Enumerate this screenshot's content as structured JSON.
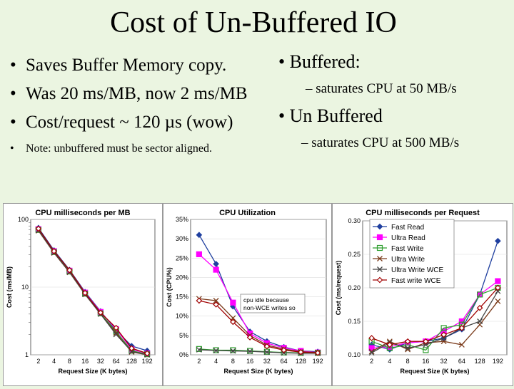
{
  "slide": {
    "title": "Cost of Un-Buffered IO",
    "left_bullets": [
      "Saves Buffer Memory copy.",
      "Was 20 ms/MB, now 2 ms/MB",
      "Cost/request ~ 120 µs (wow)",
      "Note: unbuffered must be sector aligned."
    ],
    "right_bullets": [
      {
        "text": "Buffered:",
        "sub": "saturates CPU at 50 MB/s"
      },
      {
        "text": "Un Buffered",
        "sub": "saturates CPU at 500 MB/s"
      }
    ]
  },
  "chart_data": [
    {
      "type": "line",
      "title": "CPU milliseconds per MB",
      "xlabel": "Request Size (K bytes)",
      "ylabel": "Cost (ms/MB)",
      "y_scale": "log",
      "ylim": [
        1,
        100
      ],
      "y_ticks": [
        "1",
        "10",
        "100"
      ],
      "categories": [
        "2",
        "4",
        "8",
        "16",
        "32",
        "64",
        "128",
        "192"
      ],
      "series": [
        {
          "color": "#1f3f9f",
          "marker": "diamond",
          "values": [
            75,
            35,
            18,
            8.5,
            4.4,
            2.3,
            1.35,
            1.15
          ]
        },
        {
          "color": "#ff00ff",
          "marker": "square",
          "values": [
            72,
            34,
            17.5,
            8.3,
            4.3,
            2.4,
            1.2,
            1.05
          ]
        },
        {
          "color": "#2e9e2e",
          "marker": "square-open",
          "values": [
            70,
            33,
            17,
            8,
            4.1,
            2.2,
            1.15,
            1.02
          ]
        },
        {
          "color": "#7a3a1a",
          "marker": "x",
          "values": [
            68,
            32,
            16.5,
            7.8,
            4.0,
            2.1,
            1.1,
            1.0
          ]
        },
        {
          "color": "#444444",
          "marker": "x",
          "values": [
            69,
            32.5,
            16.8,
            7.9,
            4.0,
            2.0,
            1.12,
            1.01
          ]
        },
        {
          "color": "#a00000",
          "marker": "diamond-open",
          "values": [
            73,
            34,
            17.8,
            8.2,
            4.2,
            2.5,
            1.25,
            1.05
          ]
        }
      ]
    },
    {
      "type": "line",
      "title": "CPU Utilization",
      "xlabel": "Request Size (K bytes)",
      "ylabel": "Cost (CPU%)",
      "ylim": [
        0,
        35
      ],
      "y_ticks": [
        "0%",
        "5%",
        "10%",
        "15%",
        "20%",
        "25%",
        "30%",
        "35%"
      ],
      "categories": [
        "2",
        "4",
        "8",
        "16",
        "32",
        "64",
        "128",
        "192"
      ],
      "annotation": "cpu idle because non-WCE writes so",
      "series": [
        {
          "color": "#1f3f9f",
          "marker": "diamond",
          "values": [
            31,
            23.5,
            12.5,
            6,
            3.5,
            2,
            1,
            0.8
          ]
        },
        {
          "color": "#ff00ff",
          "marker": "square",
          "values": [
            26,
            22,
            13.5,
            5.5,
            3,
            1.8,
            1,
            0.6
          ]
        },
        {
          "color": "#2e9e2e",
          "marker": "square-open",
          "values": [
            1.5,
            1.2,
            1.2,
            1,
            0.8,
            0.6,
            0.5,
            0.5
          ]
        },
        {
          "color": "#7a3a1a",
          "marker": "x",
          "values": [
            14.5,
            14,
            9.5,
            5,
            2.5,
            1.5,
            0.8,
            0.6
          ]
        },
        {
          "color": "#444444",
          "marker": "x",
          "values": [
            1.3,
            1.1,
            1,
            0.9,
            0.7,
            0.5,
            0.4,
            0.4
          ]
        },
        {
          "color": "#a00000",
          "marker": "diamond-open",
          "values": [
            14,
            13,
            8.5,
            4.5,
            2.2,
            1.2,
            0.7,
            0.5
          ]
        }
      ]
    },
    {
      "type": "line",
      "title": "CPU milliseconds per Request",
      "xlabel": "Request Size (K bytes)",
      "ylabel": "Cost (ms/request)",
      "ylim": [
        0.1,
        0.3
      ],
      "y_ticks": [
        "0.10",
        "0.15",
        "0.20",
        "0.25",
        "0.30"
      ],
      "categories": [
        "2",
        "4",
        "8",
        "16",
        "32",
        "64",
        "128",
        "192"
      ],
      "legend_position": "top-right",
      "series": [
        {
          "name": "Fast Read",
          "color": "#1f3f9f",
          "marker": "diamond",
          "values": [
            0.115,
            0.108,
            0.118,
            0.12,
            0.125,
            0.138,
            0.19,
            0.27
          ]
        },
        {
          "name": "Ultra Read",
          "color": "#ff00ff",
          "marker": "square",
          "values": [
            0.11,
            0.112,
            0.118,
            0.12,
            0.135,
            0.15,
            0.19,
            0.21
          ]
        },
        {
          "name": "Fast Write",
          "color": "#2e9e2e",
          "marker": "square-open",
          "values": [
            0.12,
            0.11,
            0.115,
            0.107,
            0.14,
            0.145,
            0.19,
            0.2
          ]
        },
        {
          "name": "Ultra Write",
          "color": "#7a3a1a",
          "marker": "x",
          "values": [
            0.105,
            0.12,
            0.108,
            0.118,
            0.12,
            0.115,
            0.145,
            0.18
          ]
        },
        {
          "name": "Ultra Write WCE",
          "color": "#444444",
          "marker": "x",
          "values": [
            0.103,
            0.118,
            0.11,
            0.115,
            0.125,
            0.14,
            0.15,
            0.195
          ]
        },
        {
          "name": "Fast write WCE",
          "color": "#a00000",
          "marker": "diamond-open",
          "values": [
            0.125,
            0.115,
            0.12,
            0.12,
            0.13,
            0.14,
            0.17,
            0.2
          ]
        }
      ]
    }
  ]
}
